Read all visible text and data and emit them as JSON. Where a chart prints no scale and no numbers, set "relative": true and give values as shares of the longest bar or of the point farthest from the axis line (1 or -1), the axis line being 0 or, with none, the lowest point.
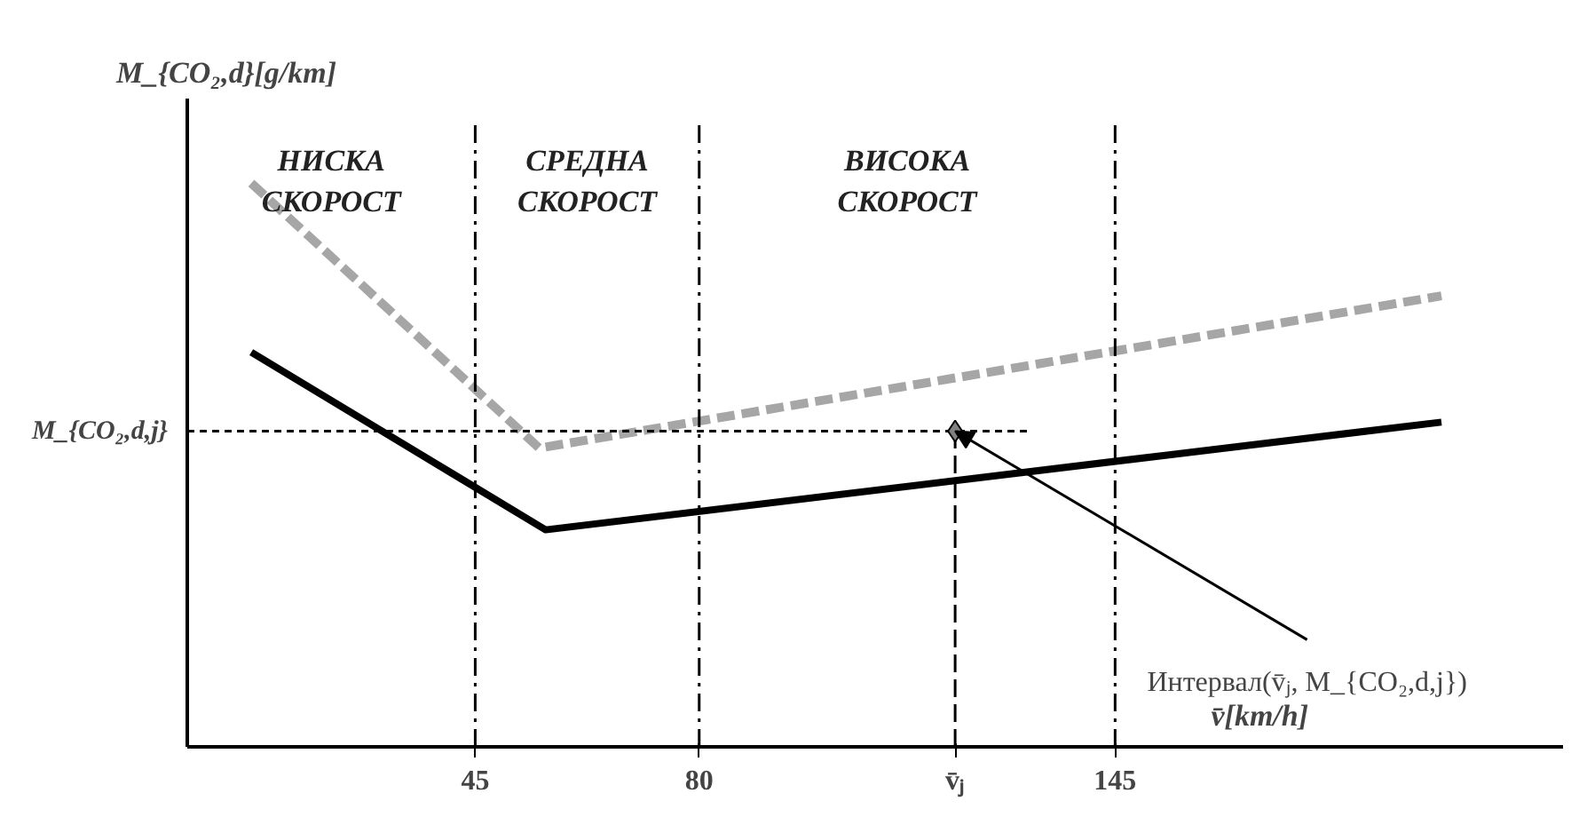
{
  "chart_data": {
    "type": "line",
    "relative": true,
    "xlabel": "v̄[km/h]",
    "ylabel": "M_{CO₂,d}[g/km]",
    "xlim": [
      0,
      215
    ],
    "xticks": [
      45,
      80,
      {
        "value": 120,
        "label": "v̄ⱼ"
      },
      145
    ],
    "series": [
      {
        "color": "#000000",
        "line_style": "solid",
        "x": [
          10,
          56,
          196
        ],
        "values": [
          0.7,
          0.385,
          0.576
        ]
      },
      {
        "color": "#a6a6a6",
        "line_style": "dashed",
        "x": [
          10,
          55,
          196
        ],
        "values": [
          1.0,
          0.53,
          0.8
        ]
      },
      {
        "type": "scatter",
        "marker": "diamond",
        "color": "#808080",
        "x": [
          120
        ],
        "values": [
          0.56
        ]
      }
    ],
    "ref_lines": [
      {
        "axis": "x",
        "value": 45,
        "line_style": "dashdot",
        "color": "#000000"
      },
      {
        "axis": "x",
        "value": 80,
        "line_style": "dashdot",
        "color": "#000000"
      },
      {
        "axis": "x",
        "value": 145,
        "line_style": "dashdot",
        "color": "#000000"
      },
      {
        "axis": "x",
        "value": 120,
        "line_style": "dashed",
        "color": "#000000"
      },
      {
        "axis": "y",
        "value": 0.56,
        "label": "M_{CO₂,d,j}",
        "line_style": "dashed",
        "color": "#000000"
      }
    ],
    "annotations": [
      "НИСКА\nСКОРОСТ",
      "СРЕДНА\nСКОРОСТ",
      "ВИСОКА\nСКОРОСТ",
      {
        "text": "Интервал(v̄ⱼ, M_{CO₂,d,j})",
        "x": 120,
        "y": 0.56
      }
    ],
    "grid": false
  }
}
